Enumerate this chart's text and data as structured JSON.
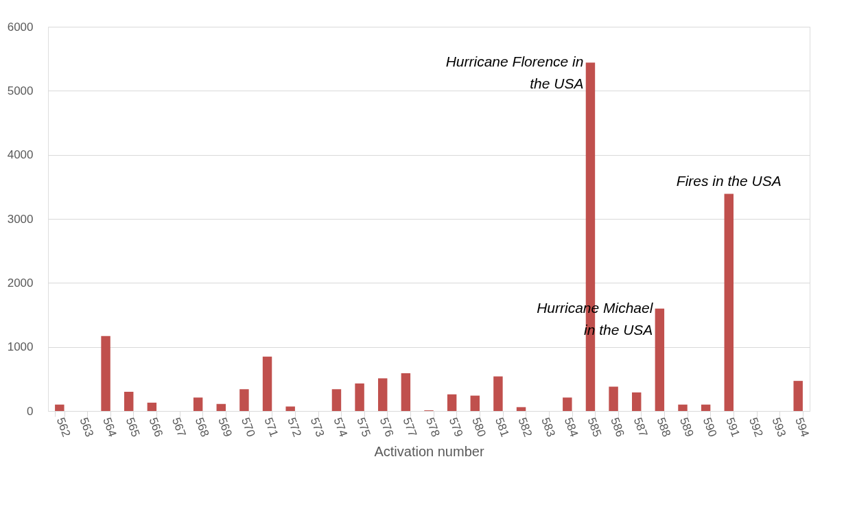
{
  "chart_data": {
    "type": "bar",
    "xlabel": "Activation number",
    "categories": [
      "562",
      "563",
      "564",
      "565",
      "566",
      "567",
      "568",
      "569",
      "570",
      "571",
      "572",
      "573",
      "574",
      "575",
      "576",
      "577",
      "578",
      "579",
      "580",
      "581",
      "582",
      "583",
      "584",
      "585",
      "586",
      "587",
      "588",
      "589",
      "590",
      "591",
      "592",
      "593",
      "594"
    ],
    "values": [
      100,
      0,
      1170,
      300,
      130,
      0,
      210,
      110,
      340,
      850,
      70,
      0,
      340,
      430,
      510,
      590,
      10,
      260,
      240,
      540,
      60,
      0,
      210,
      5440,
      380,
      290,
      1600,
      100,
      100,
      3390,
      0,
      0,
      470
    ],
    "color": "#c0504d",
    "ylim": [
      0,
      6000
    ],
    "yticks": [
      0,
      1000,
      2000,
      3000,
      4000,
      5000,
      6000
    ],
    "grid": "y",
    "annotations": [
      {
        "text": "Hurricane Florence in\nthe USA",
        "x": "585",
        "y": 5440
      },
      {
        "text": "Hurricane Michael\n in the USA",
        "x": "588",
        "y": 1600
      },
      {
        "text": "Fires in the USA",
        "x": "591",
        "y": 3390
      }
    ]
  }
}
